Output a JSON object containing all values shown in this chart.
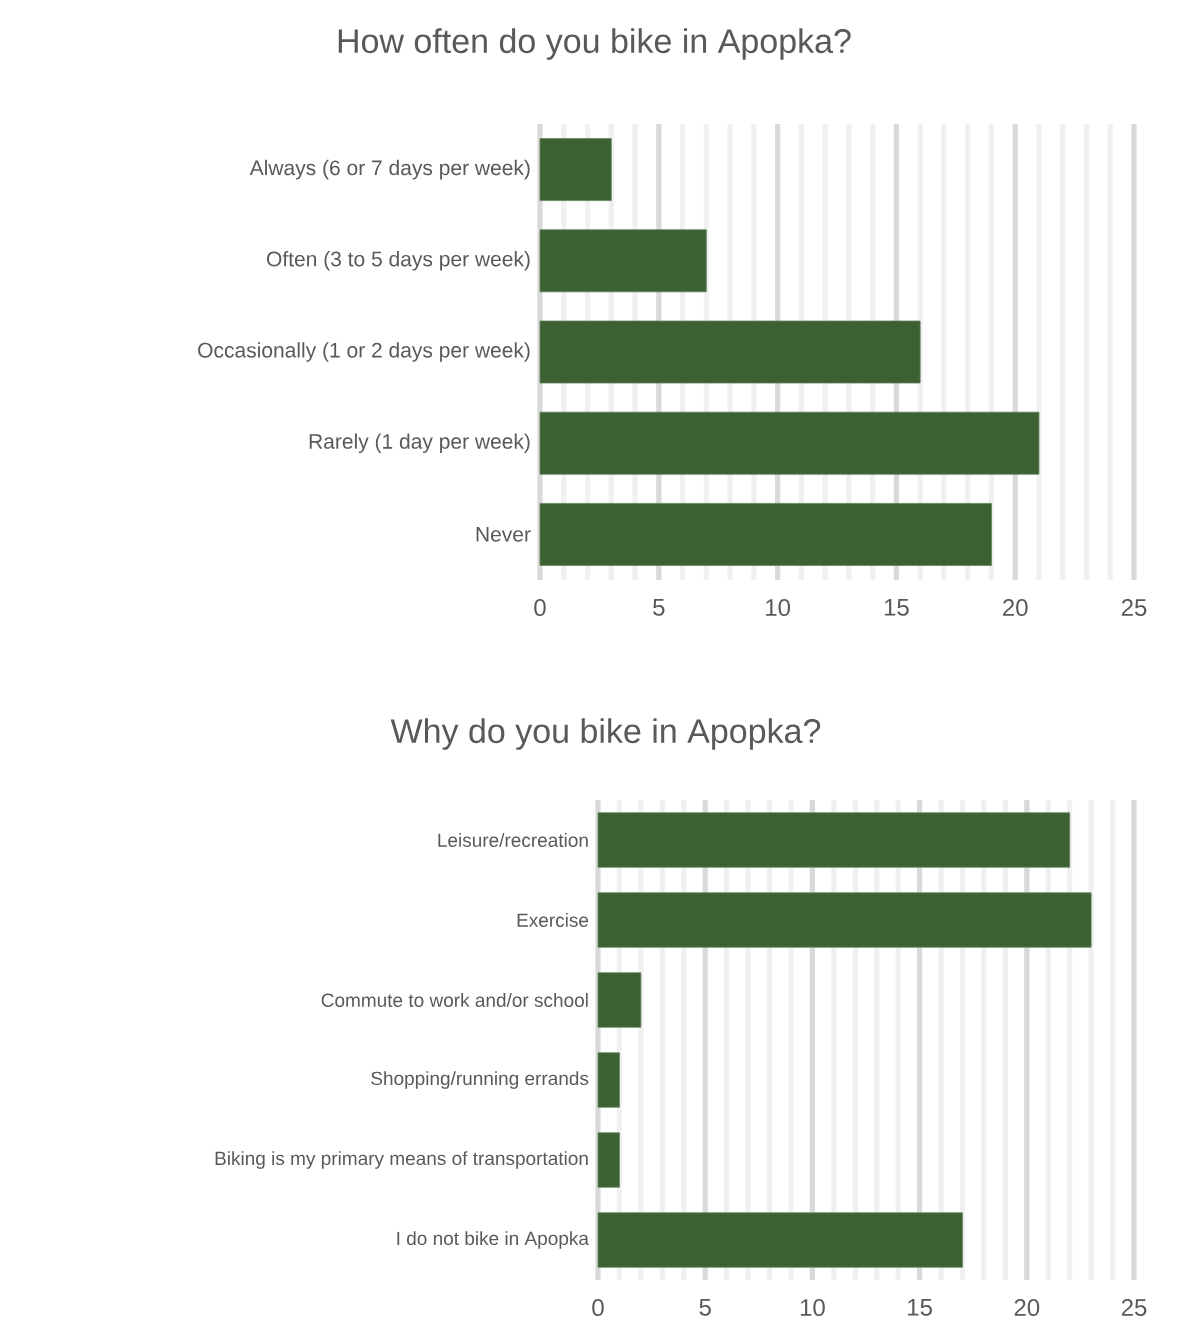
{
  "chart_data": [
    {
      "type": "bar",
      "orientation": "horizontal",
      "title": "How often do you bike in Apopka?",
      "categories": [
        "Always (6 or 7 days per week)",
        "Often (3 to 5 days per week)",
        "Occasionally (1 or 2 days per week)",
        "Rarely (1 day per week)",
        "Never"
      ],
      "values": [
        3,
        7,
        16,
        21,
        19
      ],
      "color": "#3b6132",
      "xlim": [
        0,
        25
      ],
      "xticks": [
        0,
        5,
        10,
        15,
        20,
        25
      ],
      "grid": "x"
    },
    {
      "type": "bar",
      "orientation": "horizontal",
      "title": "Why do you bike in Apopka?",
      "categories": [
        "Leisure/recreation",
        "Exercise",
        "Commute to work and/or school",
        "Shopping/running errands",
        "Biking is my primary means of transportation",
        "I do not bike in Apopka"
      ],
      "values": [
        22,
        23,
        2,
        1,
        1,
        17
      ],
      "color": "#3b6132",
      "xlim": [
        0,
        25
      ],
      "xticks": [
        0,
        5,
        10,
        15,
        20,
        25
      ],
      "grid": "x"
    }
  ]
}
